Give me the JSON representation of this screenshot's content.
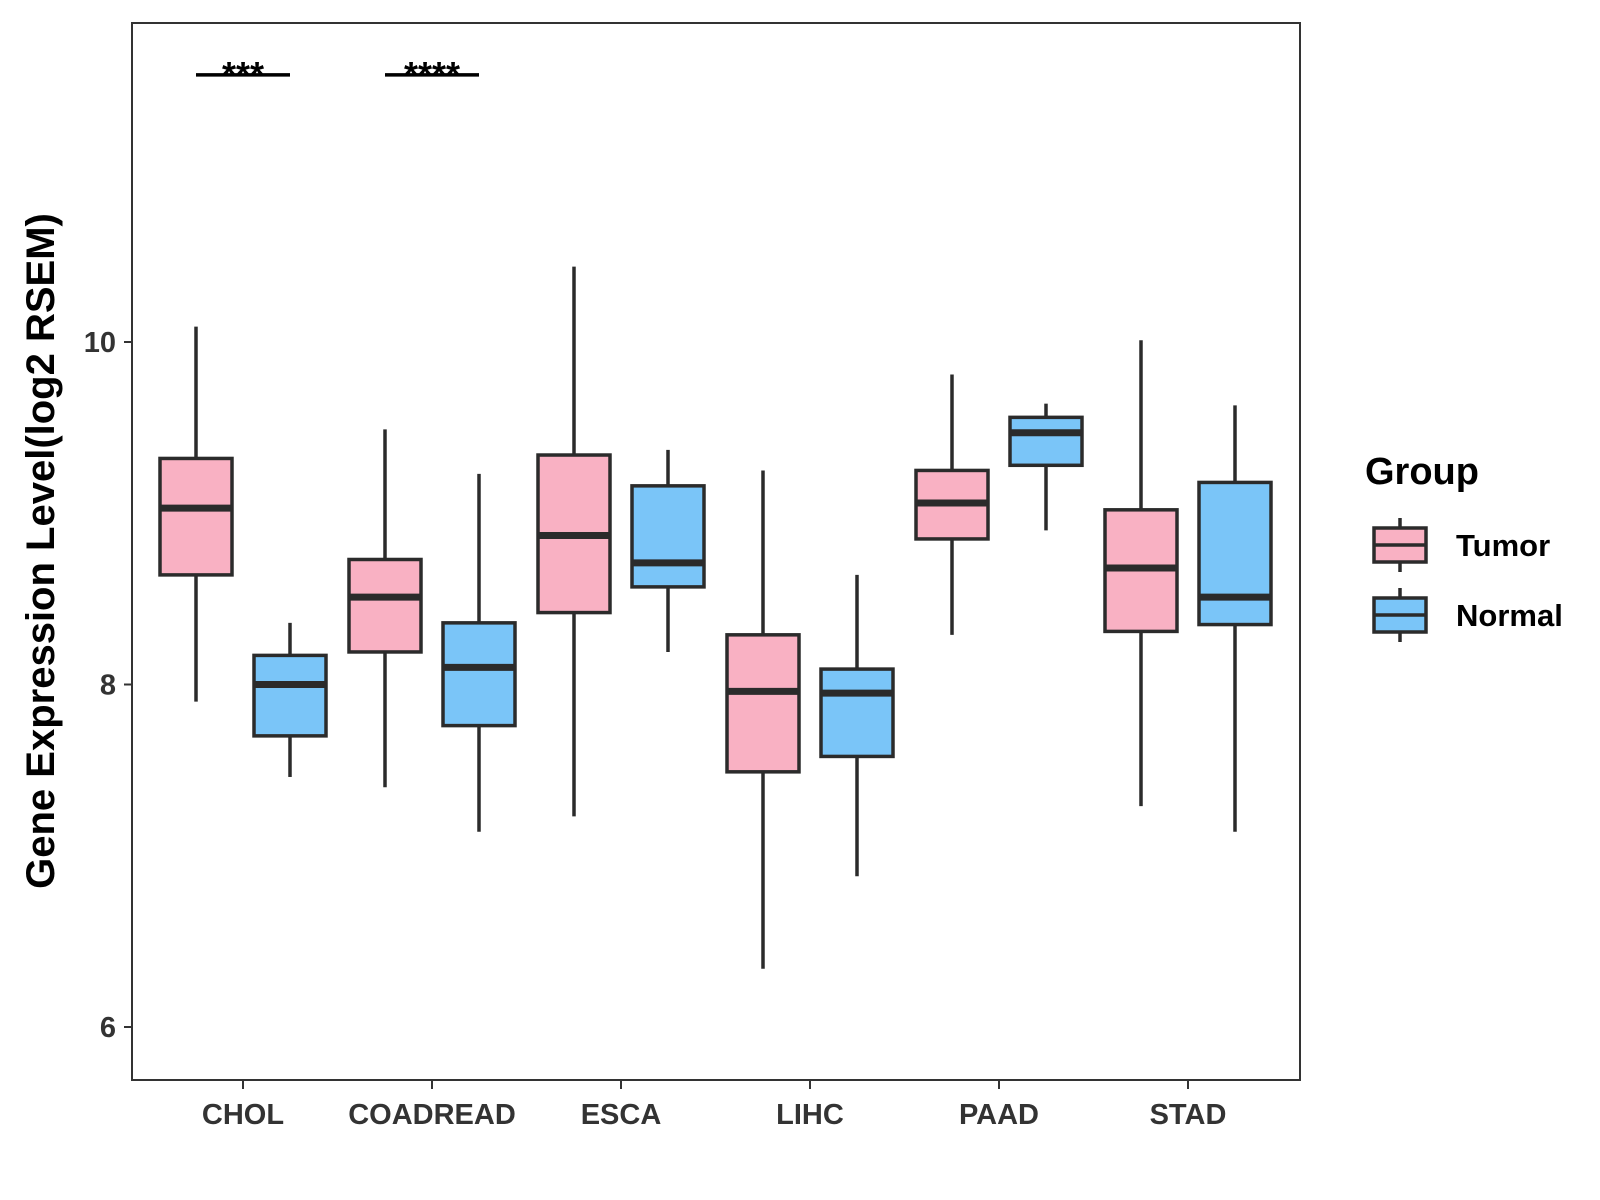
{
  "chart_data": {
    "type": "boxplot",
    "title": "",
    "xlabel": "",
    "ylabel": "Gene Expression Level(log2 RSEM)",
    "ylim": [
      5.7,
      11.9
    ],
    "yticks": [
      6,
      8,
      10
    ],
    "ytick_labels": [
      "6",
      "8",
      "10"
    ],
    "grid": false,
    "categories": [
      "CHOL",
      "COADREAD",
      "ESCA",
      "LIHC",
      "PAAD",
      "STAD"
    ],
    "legend": {
      "title": "Group",
      "position": "right",
      "entries": [
        "Tumor",
        "Normal"
      ]
    },
    "series": [
      {
        "name": "Tumor",
        "color": "#F9B1C3",
        "boxes": [
          {
            "category": "CHOL",
            "whisker_low": 7.9,
            "q1": 8.64,
            "median": 9.03,
            "q3": 9.32,
            "whisker_high": 10.09
          },
          {
            "category": "COADREAD",
            "whisker_low": 7.4,
            "q1": 8.19,
            "median": 8.51,
            "q3": 8.73,
            "whisker_high": 9.49
          },
          {
            "category": "ESCA",
            "whisker_low": 7.23,
            "q1": 8.42,
            "median": 8.87,
            "q3": 9.34,
            "whisker_high": 10.44
          },
          {
            "category": "LIHC",
            "whisker_low": 6.34,
            "q1": 7.49,
            "median": 7.96,
            "q3": 8.29,
            "whisker_high": 9.25
          },
          {
            "category": "PAAD",
            "whisker_low": 8.29,
            "q1": 8.85,
            "median": 9.06,
            "q3": 9.25,
            "whisker_high": 9.81
          },
          {
            "category": "STAD",
            "whisker_low": 7.29,
            "q1": 8.31,
            "median": 8.68,
            "q3": 9.02,
            "whisker_high": 10.01
          }
        ]
      },
      {
        "name": "Normal",
        "color": "#7AC5F8",
        "boxes": [
          {
            "category": "CHOL",
            "whisker_low": 7.46,
            "q1": 7.7,
            "median": 8.0,
            "q3": 8.17,
            "whisker_high": 8.36
          },
          {
            "category": "COADREAD",
            "whisker_low": 7.14,
            "q1": 7.76,
            "median": 8.1,
            "q3": 8.36,
            "whisker_high": 9.23
          },
          {
            "category": "ESCA",
            "whisker_low": 8.19,
            "q1": 8.57,
            "median": 8.71,
            "q3": 9.16,
            "whisker_high": 9.37
          },
          {
            "category": "LIHC",
            "whisker_low": 6.88,
            "q1": 7.58,
            "median": 7.95,
            "q3": 8.09,
            "whisker_high": 8.64
          },
          {
            "category": "PAAD",
            "whisker_low": 8.9,
            "q1": 9.28,
            "median": 9.47,
            "q3": 9.56,
            "whisker_high": 9.64
          },
          {
            "category": "STAD",
            "whisker_low": 7.14,
            "q1": 8.35,
            "median": 8.51,
            "q3": 9.18,
            "whisker_high": 9.63
          }
        ]
      }
    ],
    "annotations": [
      {
        "category": "CHOL",
        "label": "***",
        "y": 11.56
      },
      {
        "category": "COADREAD",
        "label": "****",
        "y": 11.56
      }
    ]
  }
}
